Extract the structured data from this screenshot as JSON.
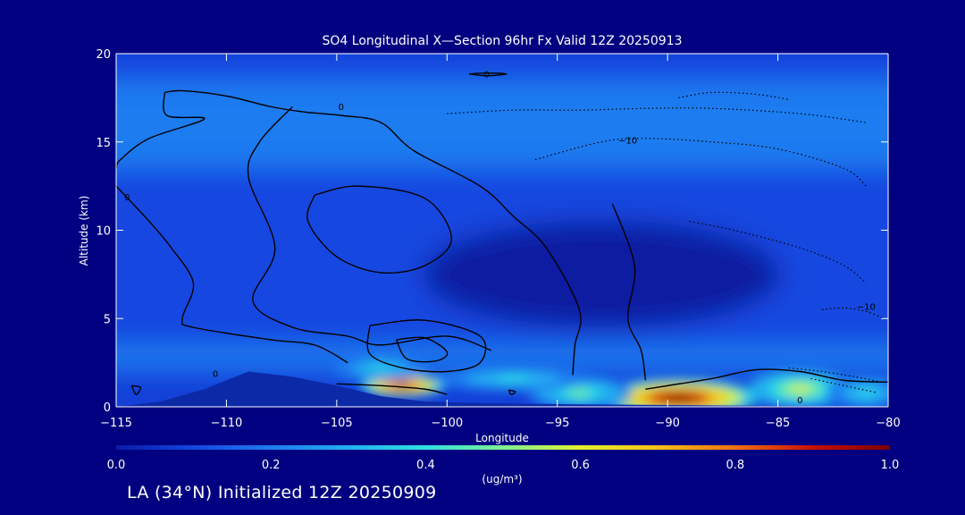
{
  "chart_data": {
    "type": "heatmap",
    "title": "SO4 Longitudinal X—Section 96hr  Fx Valid 12Z 20250913",
    "xlabel": "Longitude",
    "ylabel": "Altitude (km)",
    "xlim": [
      -115,
      -80
    ],
    "ylim": [
      0,
      20
    ],
    "x_ticks": [
      -115,
      -110,
      -105,
      -100,
      -95,
      -90,
      -85,
      -80
    ],
    "x_tick_labels": [
      "−115",
      "−110",
      "−105",
      "−100",
      "−95",
      "−90",
      "−85",
      "−80"
    ],
    "y_ticks": [
      0,
      5,
      10,
      15,
      20
    ],
    "y_tick_labels": [
      "0",
      "5",
      "10",
      "15",
      "20"
    ],
    "colorbar": {
      "min": 0.0,
      "max": 1.0,
      "ticks": [
        0.0,
        0.2,
        0.4,
        0.6,
        0.8,
        1.0
      ],
      "tick_labels": [
        "0.0",
        "0.2",
        "0.4",
        "0.6",
        "0.8",
        "1.0"
      ],
      "units": "(ug/m³)",
      "colors": [
        "#0a1aa8",
        "#1446e0",
        "#1e7cf0",
        "#22b0f0",
        "#30e0e0",
        "#7ef090",
        "#e0f030",
        "#f8c018",
        "#f07010",
        "#c81008",
        "#7a0000"
      ]
    },
    "terrain": [
      {
        "lon": -115,
        "alt": 0.0
      },
      {
        "lon": -113,
        "alt": 0.3
      },
      {
        "lon": -111,
        "alt": 1.0
      },
      {
        "lon": -109,
        "alt": 2.0
      },
      {
        "lon": -107,
        "alt": 1.7
      },
      {
        "lon": -105,
        "alt": 1.2
      },
      {
        "lon": -103,
        "alt": 0.6
      },
      {
        "lon": -101,
        "alt": 0.3
      },
      {
        "lon": -98,
        "alt": 0.2
      },
      {
        "lon": -95,
        "alt": 0.15
      },
      {
        "lon": -90,
        "alt": 0.1
      },
      {
        "lon": -85,
        "alt": 0.05
      },
      {
        "lon": -80,
        "alt": 0.0
      }
    ],
    "concentration_blobs": [
      {
        "lon": -89.5,
        "alt": 0.5,
        "sx": 3.0,
        "sy": 0.9,
        "value": 1.0
      },
      {
        "lon": -102.0,
        "alt": 1.2,
        "sx": 1.6,
        "sy": 0.5,
        "value": 0.95
      },
      {
        "lon": -94.0,
        "alt": 0.8,
        "sx": 2.0,
        "sy": 0.8,
        "value": 0.45
      },
      {
        "lon": -84.0,
        "alt": 1.0,
        "sx": 2.0,
        "sy": 0.9,
        "value": 0.6
      },
      {
        "lon": -81.0,
        "alt": 0.8,
        "sx": 1.5,
        "sy": 0.8,
        "value": 0.4
      },
      {
        "lon": -97.0,
        "alt": 1.6,
        "sx": 3.0,
        "sy": 0.6,
        "value": 0.35
      },
      {
        "lon": -103.0,
        "alt": 2.2,
        "sx": 1.8,
        "sy": 0.6,
        "value": 0.35
      }
    ],
    "contours": [
      {
        "label": "0",
        "style": "solid",
        "points": [
          [
            -112.8,
            17.8
          ],
          [
            -112,
            17.9
          ],
          [
            -110,
            17.6
          ],
          [
            -108,
            17.0
          ],
          [
            -106.5,
            16.7
          ],
          [
            -104.8,
            16.5
          ],
          [
            -103,
            16.1
          ],
          [
            -101.5,
            14.5
          ],
          [
            -98.5,
            12.5
          ],
          [
            -97,
            10.8
          ],
          [
            -95.5,
            9.0
          ],
          [
            -94,
            5.5
          ],
          [
            -94.2,
            3.5
          ],
          [
            -94.3,
            1.8
          ]
        ]
      },
      {
        "label": "0",
        "style": "solid",
        "points": [
          [
            -112.8,
            17.8
          ],
          [
            -112.7,
            16.5
          ],
          [
            -111,
            16.3
          ],
          [
            -113.5,
            15.2
          ],
          [
            -114.8,
            14.0
          ],
          [
            -115,
            13.5
          ]
        ]
      },
      {
        "label": "0",
        "style": "solid",
        "points": [
          [
            -115,
            12.5
          ],
          [
            -113.5,
            10.5
          ],
          [
            -112.5,
            9.0
          ],
          [
            -111.5,
            7.0
          ],
          [
            -112,
            5.0
          ],
          [
            -111.5,
            4.5
          ],
          [
            -108,
            3.8
          ],
          [
            -106,
            3.5
          ],
          [
            -104.5,
            2.5
          ]
        ]
      },
      {
        "label": "",
        "style": "solid",
        "points": [
          [
            -107,
            17.0
          ],
          [
            -108.5,
            15.0
          ],
          [
            -109,
            13.0
          ],
          [
            -107.8,
            9.0
          ],
          [
            -108.8,
            6.0
          ],
          [
            -107,
            4.5
          ],
          [
            -104.5,
            4.0
          ],
          [
            -103,
            3.5
          ],
          [
            -100,
            4.0
          ],
          [
            -98,
            3.2
          ]
        ]
      },
      {
        "label": "",
        "style": "solid",
        "points": [
          [
            -106,
            12.0
          ],
          [
            -104,
            12.5
          ],
          [
            -101,
            11.8
          ],
          [
            -99.8,
            9.5
          ],
          [
            -101,
            8.0
          ],
          [
            -103,
            7.6
          ],
          [
            -105,
            8.5
          ],
          [
            -106.3,
            10.5
          ],
          [
            -106,
            12.0
          ]
        ]
      },
      {
        "label": "",
        "style": "solid",
        "points": [
          [
            -103.5,
            4.6
          ],
          [
            -101,
            4.9
          ],
          [
            -98.5,
            4.0
          ],
          [
            -98.5,
            2.5
          ],
          [
            -100,
            2.0
          ],
          [
            -102,
            2.2
          ],
          [
            -103.5,
            3.0
          ],
          [
            -103.5,
            4.6
          ]
        ]
      },
      {
        "label": "",
        "style": "solid",
        "points": [
          [
            -102.3,
            3.8
          ],
          [
            -101,
            3.9
          ],
          [
            -100,
            3.1
          ],
          [
            -100.5,
            2.6
          ],
          [
            -101.8,
            2.7
          ],
          [
            -102.3,
            3.8
          ]
        ]
      },
      {
        "label": "",
        "style": "solid",
        "points": [
          [
            -92.5,
            11.5
          ],
          [
            -91.5,
            8.0
          ],
          [
            -91.8,
            5.0
          ],
          [
            -91.2,
            3.2
          ],
          [
            -91,
            1.5
          ]
        ]
      },
      {
        "label": "",
        "style": "solid",
        "points": [
          [
            -91,
            1.0
          ],
          [
            -88,
            1.6
          ],
          [
            -86,
            2.1
          ],
          [
            -84,
            2.0
          ],
          [
            -82,
            1.5
          ],
          [
            -80,
            1.4
          ]
        ]
      },
      {
        "label": "",
        "style": "solid",
        "points": [
          [
            -105,
            1.3
          ],
          [
            -103,
            1.2
          ],
          [
            -101,
            1.0
          ],
          [
            -100,
            0.7
          ]
        ]
      },
      {
        "label": "",
        "style": "solid",
        "points": [
          [
            -99.0,
            18.85
          ],
          [
            -98.2,
            18.9
          ],
          [
            -97.3,
            18.85
          ],
          [
            -98.2,
            18.75
          ],
          [
            -99.0,
            18.85
          ]
        ]
      },
      {
        "label": "",
        "style": "solid",
        "points": [
          [
            -114.3,
            1.2
          ],
          [
            -113.9,
            1.1
          ],
          [
            -114.1,
            0.7
          ],
          [
            -114.3,
            1.2
          ]
        ]
      },
      {
        "label": "",
        "style": "solid",
        "points": [
          [
            -97.2,
            0.95
          ],
          [
            -96.9,
            0.85
          ],
          [
            -97.1,
            0.7
          ],
          [
            -97.2,
            0.95
          ]
        ]
      },
      {
        "label": "-10",
        "style": "dotted",
        "points": [
          [
            -100,
            16.6
          ],
          [
            -97,
            16.8
          ],
          [
            -94,
            16.8
          ],
          [
            -91,
            16.9
          ],
          [
            -88,
            16.9
          ],
          [
            -84,
            16.6
          ],
          [
            -81,
            16.1
          ]
        ]
      },
      {
        "label": "-10",
        "style": "dotted",
        "points": [
          [
            -96,
            14.0
          ],
          [
            -93,
            15.0
          ],
          [
            -91,
            15.2
          ],
          [
            -88,
            15.0
          ],
          [
            -85,
            14.6
          ],
          [
            -82,
            13.5
          ],
          [
            -81,
            12.5
          ]
        ]
      },
      {
        "label": "",
        "style": "dotted",
        "points": [
          [
            -89.5,
            17.5
          ],
          [
            -88,
            17.8
          ],
          [
            -86,
            17.7
          ],
          [
            -84.5,
            17.4
          ]
        ]
      },
      {
        "label": "",
        "style": "dotted",
        "points": [
          [
            -89,
            10.5
          ],
          [
            -87,
            10.0
          ],
          [
            -84,
            9.0
          ],
          [
            -82,
            8.0
          ],
          [
            -81,
            7.0
          ]
        ]
      },
      {
        "label": "-10",
        "style": "dotted",
        "points": [
          [
            -83,
            5.5
          ],
          [
            -82,
            5.6
          ],
          [
            -81,
            5.4
          ],
          [
            -80.2,
            5.0
          ]
        ]
      },
      {
        "label": "",
        "style": "dotted",
        "points": [
          [
            -84.5,
            2.2
          ],
          [
            -83,
            2.0
          ],
          [
            -81.5,
            1.7
          ],
          [
            -80.3,
            1.4
          ]
        ]
      },
      {
        "label": "",
        "style": "dotted",
        "points": [
          [
            -83.5,
            1.6
          ],
          [
            -82,
            1.2
          ],
          [
            -80.5,
            0.8
          ]
        ]
      }
    ],
    "contour_labels": [
      {
        "text": "0",
        "lon": -104.8,
        "alt": 16.8
      },
      {
        "text": "0",
        "lon": -98.2,
        "alt": 18.65
      },
      {
        "text": "0",
        "lon": -114.5,
        "alt": 11.7
      },
      {
        "text": "0",
        "lon": -110.5,
        "alt": 1.7
      },
      {
        "text": "0",
        "lon": -84.0,
        "alt": 0.2
      },
      {
        "text": "−10",
        "lon": -91.8,
        "alt": 14.9
      },
      {
        "text": "−10",
        "lon": -81.0,
        "alt": 5.5
      }
    ]
  },
  "footer": {
    "text": "LA (34°N) Initialized 12Z 20250909"
  }
}
